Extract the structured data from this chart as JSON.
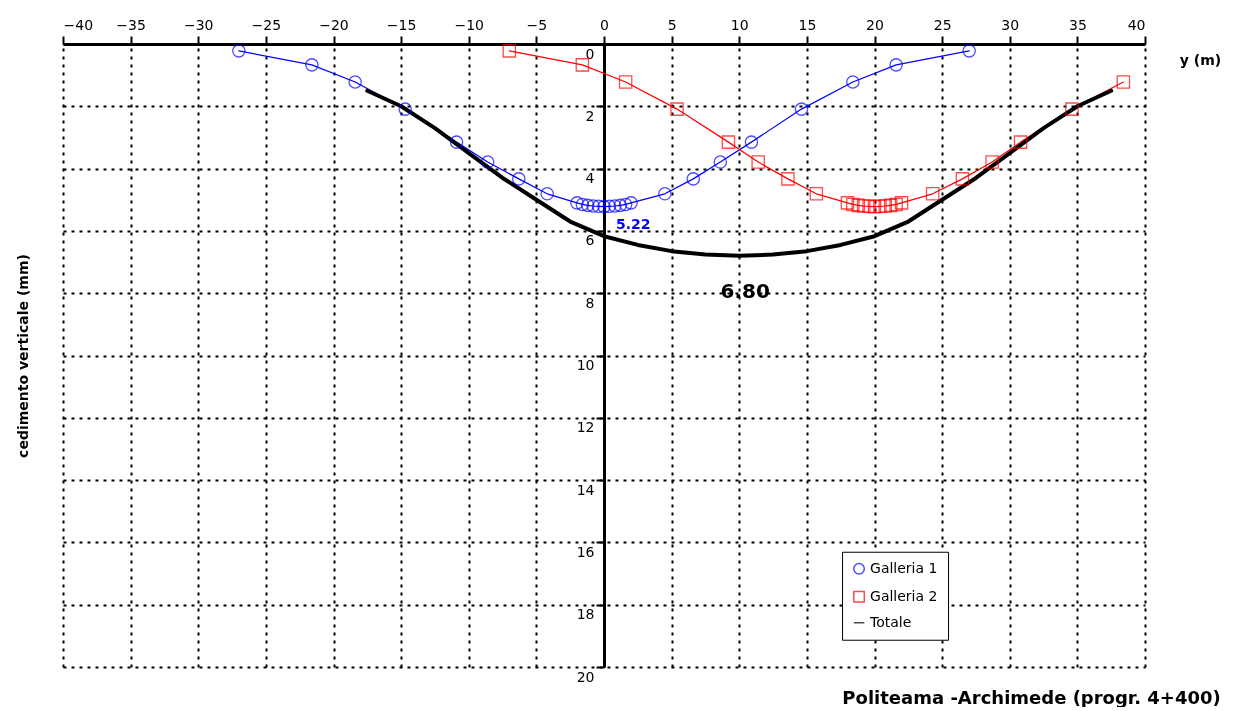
{
  "chart_data": {
    "type": "line",
    "title": "Politeama -Archimede (progr. 4+400)",
    "xlabel": "y (m)",
    "ylabel": "cedimento verticale (mm)",
    "xlim": [
      -40,
      40
    ],
    "xticks": [
      -40,
      -35,
      -30,
      -25,
      -20,
      -15,
      -10,
      -5,
      0,
      5,
      10,
      15,
      20,
      25,
      30,
      35,
      40
    ],
    "ylim": [
      20,
      0
    ],
    "yticks": [
      0,
      2,
      4,
      6,
      8,
      10,
      12,
      14,
      16,
      18,
      20
    ],
    "grid": true,
    "legend": "bottom right",
    "line_style": "solid",
    "series": [
      {
        "name": "Galleria 1",
        "color": "#0000ff",
        "marker": "circle",
        "x": [
          -27,
          -21.6,
          -18.4,
          -14.7,
          -10.9,
          -8.6,
          -6.3,
          -4.2,
          -2,
          -1.6,
          -1.2,
          -0.8,
          -0.4,
          0,
          0.4,
          0.8,
          1.2,
          1.6,
          2,
          4.5,
          6.6,
          8.6,
          10.9,
          14.6,
          18.4,
          21.6,
          27
        ],
        "values": [
          0.22,
          0.67,
          1.22,
          2.09,
          3.15,
          3.79,
          4.33,
          4.81,
          5.1,
          5.15,
          5.18,
          5.2,
          5.21,
          5.22,
          5.21,
          5.2,
          5.18,
          5.15,
          5.1,
          4.81,
          4.33,
          3.79,
          3.15,
          2.09,
          1.22,
          0.67,
          0.22
        ]
      },
      {
        "name": "Galleria 2",
        "color": "#ff0000",
        "marker": "square",
        "x": [
          -7,
          -1.6,
          1.6,
          5.4,
          9.2,
          11.4,
          13.6,
          15.7,
          18,
          18.4,
          18.8,
          19.2,
          19.6,
          20,
          20.4,
          20.8,
          21.2,
          21.6,
          22,
          24.3,
          26.5,
          28.7,
          30.8,
          34.6,
          38.4
        ],
        "values": [
          0.22,
          0.67,
          1.22,
          2.09,
          3.15,
          3.79,
          4.33,
          4.81,
          5.1,
          5.15,
          5.18,
          5.2,
          5.21,
          5.22,
          5.21,
          5.2,
          5.18,
          5.15,
          5.1,
          4.81,
          4.33,
          3.79,
          3.15,
          2.09,
          1.22
        ]
      },
      {
        "name": "Totale",
        "color": "#000000",
        "marker": "none",
        "x": [
          -17.5,
          -15,
          -12.5,
          -10,
          -7.5,
          -5,
          -2.5,
          0,
          2.5,
          5,
          7.5,
          10,
          12.5,
          15,
          17.5,
          20,
          22.5,
          25,
          27.5,
          30,
          32.5,
          35,
          37.5
        ],
        "values": [
          1.5,
          2.0,
          2.7,
          3.5,
          4.3,
          5.0,
          5.7,
          6.17,
          6.45,
          6.65,
          6.76,
          6.8,
          6.76,
          6.65,
          6.45,
          6.17,
          5.7,
          5.0,
          4.3,
          3.5,
          2.7,
          2.0,
          1.5
        ]
      }
    ],
    "annotations": [
      {
        "text": "5.22",
        "x": 0,
        "y": 5.22
      },
      {
        "text": "6.80",
        "x": 10,
        "y": 6.8
      }
    ]
  }
}
